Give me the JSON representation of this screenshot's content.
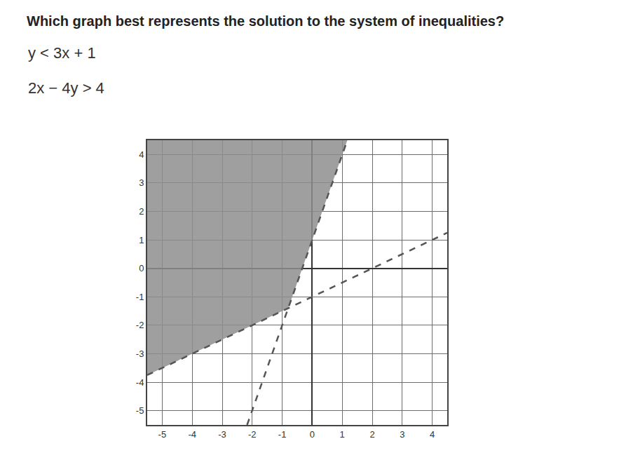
{
  "chart_data": {
    "type": "inequality_graph",
    "title": "Which graph best represents the solution to the system of inequalities?",
    "inequalities": [
      "y < 3x + 1",
      "2x − 4y > 4"
    ],
    "xlim": [
      -5.5,
      4.5
    ],
    "ylim": [
      -5.5,
      4.5
    ],
    "xticks": [
      -5,
      -4,
      -3,
      -2,
      -1,
      0,
      1,
      2,
      3,
      4
    ],
    "yticks": [
      -5,
      -4,
      -3,
      -2,
      -1,
      0,
      1,
      2,
      3,
      4
    ],
    "grid": true,
    "region": {
      "x": [
        -5.5,
        1.17,
        -0.8,
        -5.5
      ],
      "y": [
        4.5,
        4.5,
        -1.4,
        -3.75
      ],
      "color": "#8e8e8e"
    },
    "series": [
      {
        "x": [
          -2.17,
          1.17
        ],
        "y": [
          -5.5,
          4.5
        ],
        "color": "#555555",
        "line_style": "dash"
      },
      {
        "x": [
          -5.5,
          4.5
        ],
        "y": [
          -3.75,
          1.25
        ],
        "color": "#555555",
        "line_style": "dash"
      }
    ]
  }
}
